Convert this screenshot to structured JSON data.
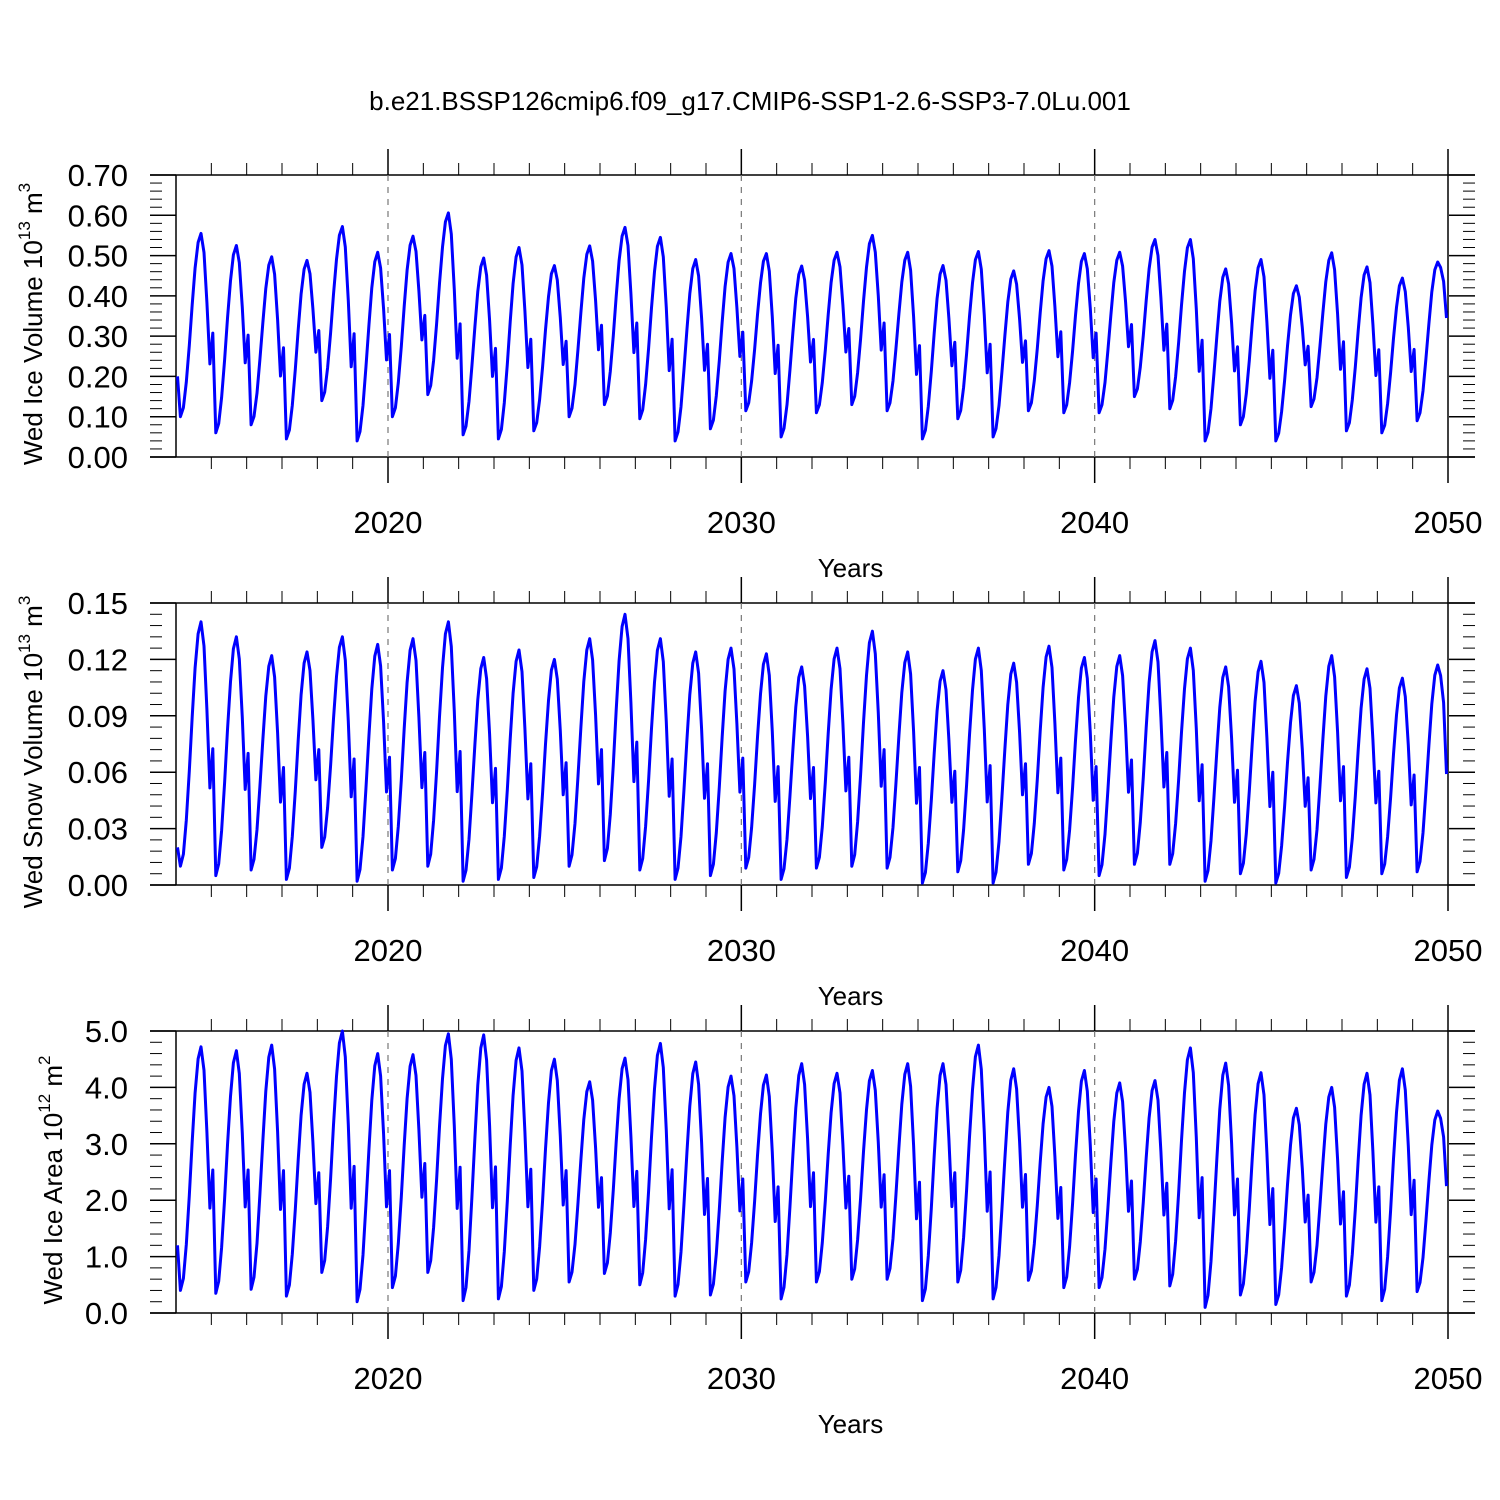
{
  "title": "b.e21.BSSP126cmip6.f09_g17.CMIP6-SSP1-2.6-SSP3-7.0Lu.001",
  "chart_data": [
    {
      "type": "line",
      "title": "",
      "xlabel": "Years",
      "ylabel_main": "Wed Ice Volume 10",
      "ylabel_exp": "13",
      "ylabel_unit": " m",
      "ylabel_unit_exp": "3",
      "xlim": [
        2014,
        2050
      ],
      "ylim": [
        0.0,
        0.7
      ],
      "xticks": [
        2020,
        2030,
        2040,
        2050
      ],
      "xtick_labels": [
        "2020",
        "2030",
        "2040",
        "2050"
      ],
      "yticks": [
        0.0,
        0.1,
        0.2,
        0.3,
        0.4,
        0.5,
        0.6,
        0.7
      ],
      "ytick_labels": [
        "0.00",
        "0.10",
        "0.20",
        "0.30",
        "0.40",
        "0.50",
        "0.60",
        "0.70"
      ],
      "series_color": "#0000ff",
      "seasonal_peak_month": 9,
      "annual_max": [
        0.555,
        0.525,
        0.497,
        0.488,
        0.572,
        0.508,
        0.548,
        0.606,
        0.494,
        0.52,
        0.475,
        0.524,
        0.57,
        0.545,
        0.49,
        0.505,
        0.505,
        0.474,
        0.508,
        0.55,
        0.508,
        0.475,
        0.51,
        0.462,
        0.512,
        0.505,
        0.508,
        0.54,
        0.54,
        0.467,
        0.49,
        0.425,
        0.507,
        0.472,
        0.444,
        0.484
      ],
      "annual_min": [
        0.1,
        0.06,
        0.08,
        0.045,
        0.14,
        0.04,
        0.1,
        0.155,
        0.055,
        0.045,
        0.065,
        0.1,
        0.13,
        0.095,
        0.04,
        0.07,
        0.115,
        0.05,
        0.11,
        0.13,
        0.115,
        0.045,
        0.095,
        0.05,
        0.115,
        0.11,
        0.11,
        0.15,
        0.12,
        0.04,
        0.08,
        0.04,
        0.125,
        0.065,
        0.06,
        0.09
      ],
      "start_value": 0.2,
      "end_value": 0.345
    },
    {
      "type": "line",
      "title": "",
      "xlabel": "Years",
      "ylabel_main": "Wed Snow Volume 10",
      "ylabel_exp": "13",
      "ylabel_unit": " m",
      "ylabel_unit_exp": "3",
      "xlim": [
        2014,
        2050
      ],
      "ylim": [
        0.0,
        0.15
      ],
      "xticks": [
        2020,
        2030,
        2040,
        2050
      ],
      "xtick_labels": [
        "2020",
        "2030",
        "2040",
        "2050"
      ],
      "yticks": [
        0.0,
        0.03,
        0.06,
        0.09,
        0.12,
        0.15
      ],
      "ytick_labels": [
        "0.00",
        "0.03",
        "0.06",
        "0.09",
        "0.12",
        "0.15"
      ],
      "series_color": "#0000ff",
      "seasonal_peak_month": 9,
      "annual_max": [
        0.14,
        0.132,
        0.122,
        0.124,
        0.132,
        0.128,
        0.131,
        0.14,
        0.121,
        0.125,
        0.12,
        0.131,
        0.144,
        0.131,
        0.124,
        0.126,
        0.123,
        0.116,
        0.126,
        0.135,
        0.124,
        0.114,
        0.126,
        0.118,
        0.127,
        0.121,
        0.122,
        0.13,
        0.126,
        0.116,
        0.119,
        0.106,
        0.122,
        0.115,
        0.11,
        0.117
      ],
      "annual_min": [
        0.01,
        0.005,
        0.008,
        0.003,
        0.02,
        0.002,
        0.008,
        0.01,
        0.002,
        0.003,
        0.004,
        0.01,
        0.013,
        0.008,
        0.003,
        0.005,
        0.009,
        0.003,
        0.009,
        0.01,
        0.009,
        0.001,
        0.007,
        0.001,
        0.011,
        0.008,
        0.005,
        0.011,
        0.011,
        0.002,
        0.006,
        0.001,
        0.008,
        0.004,
        0.006,
        0.007
      ],
      "start_value": 0.02,
      "end_value": 0.059
    },
    {
      "type": "line",
      "title": "",
      "xlabel": "Years",
      "ylabel_main": "Wed Ice Area 10",
      "ylabel_exp": "12",
      "ylabel_unit": " m",
      "ylabel_unit_exp": "2",
      "xlim": [
        2014,
        2050
      ],
      "ylim": [
        0.0,
        5.0
      ],
      "xticks": [
        2020,
        2030,
        2040,
        2050
      ],
      "xtick_labels": [
        "2020",
        "2030",
        "2040",
        "2050"
      ],
      "yticks": [
        0.0,
        1.0,
        2.0,
        3.0,
        4.0,
        5.0
      ],
      "ytick_labels": [
        "0.0",
        "1.0",
        "2.0",
        "3.0",
        "4.0",
        "5.0"
      ],
      "series_color": "#0000ff",
      "seasonal_peak_month": 9,
      "annual_max": [
        4.72,
        4.65,
        4.75,
        4.25,
        5.0,
        4.6,
        4.58,
        4.95,
        4.93,
        4.7,
        4.5,
        4.1,
        4.52,
        4.78,
        4.45,
        4.2,
        4.22,
        4.42,
        4.25,
        4.3,
        4.42,
        4.42,
        4.75,
        4.33,
        4.0,
        4.3,
        4.08,
        4.12,
        4.7,
        4.43,
        4.26,
        3.63,
        4.0,
        4.25,
        4.33,
        3.58
      ],
      "annual_min": [
        0.4,
        0.35,
        0.42,
        0.3,
        0.72,
        0.2,
        0.45,
        0.72,
        0.22,
        0.25,
        0.4,
        0.55,
        0.7,
        0.5,
        0.3,
        0.32,
        0.55,
        0.25,
        0.55,
        0.6,
        0.6,
        0.22,
        0.55,
        0.25,
        0.58,
        0.45,
        0.45,
        0.6,
        0.48,
        0.1,
        0.32,
        0.15,
        0.55,
        0.3,
        0.22,
        0.38
      ],
      "start_value": 1.2,
      "end_value": 2.25
    }
  ]
}
